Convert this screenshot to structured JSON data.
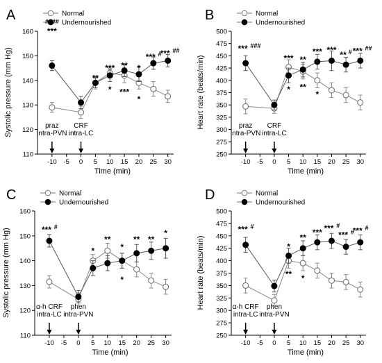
{
  "chart_data": [
    {
      "panel": "A",
      "type": "line",
      "ylabel": "Systolic pressure (mm Hg)",
      "xlabel": "Time (min)",
      "ylim": [
        110,
        160
      ],
      "yticks": [
        110,
        120,
        130,
        140,
        150,
        160
      ],
      "xticks": [
        -10,
        -5,
        0,
        5,
        10,
        15,
        20,
        25,
        30
      ],
      "legend": [
        "Normal",
        "Undernourished"
      ],
      "annotations": [
        {
          "x": -10,
          "lines": [
            "praz",
            "intra-PVN"
          ]
        },
        {
          "x": 0,
          "lines": [
            "CRF",
            "intra-LC"
          ]
        }
      ],
      "series": [
        {
          "name": "Normal",
          "x": [
            -10,
            0,
            5,
            10,
            15,
            20,
            25,
            30
          ],
          "y": [
            129,
            127,
            139,
            143,
            142,
            139,
            136.5,
            133.5
          ],
          "err": [
            2,
            2.5,
            2.5,
            2,
            3,
            2.5,
            3,
            2.5
          ]
        },
        {
          "name": "Undernourished",
          "x": [
            -10,
            0,
            5,
            10,
            15,
            20,
            25,
            30
          ],
          "y": [
            146,
            131,
            139,
            142,
            144,
            142.5,
            147,
            148
          ],
          "err": [
            2,
            2.5,
            2,
            2.5,
            2.5,
            3,
            2.5,
            2.5
          ]
        }
      ],
      "marks": [
        {
          "x": -10,
          "value": 160,
          "stars": "***",
          "hash": "####",
          "hashpos": "above"
        },
        {
          "x": 5,
          "value": 141,
          "stars": "**",
          "hash": ""
        },
        {
          "x": 10,
          "value": 145,
          "stars": "***",
          "hash": ""
        },
        {
          "x": 15,
          "value": 146,
          "stars": "**",
          "hash": ""
        },
        {
          "x": 20,
          "value": 145,
          "stars": "*",
          "hash": ""
        },
        {
          "x": 25,
          "value": 149.5,
          "stars": "***",
          "hash": "#"
        },
        {
          "x": 30,
          "value": 151,
          "stars": "***",
          "hash": "##"
        },
        {
          "x": 10,
          "value": 138,
          "stars": "*",
          "hash": "",
          "below": true
        },
        {
          "x": 15,
          "value": 137,
          "stars": "***",
          "hash": "",
          "below": true
        },
        {
          "x": 20,
          "value": 134,
          "stars": "*",
          "hash": "",
          "below": true
        }
      ]
    },
    {
      "panel": "B",
      "type": "line",
      "ylabel": "Heart rate (beats/min)",
      "xlabel": "Time (min)",
      "ylim": [
        250,
        500
      ],
      "yticks": [
        250,
        275,
        300,
        325,
        350,
        375,
        400,
        425,
        450,
        475,
        500
      ],
      "xticks": [
        -10,
        -5,
        0,
        5,
        10,
        15,
        20,
        25,
        30
      ],
      "legend": [
        "Normal",
        "Undernourished"
      ],
      "annotations": [
        {
          "x": -10,
          "lines": [
            "praz",
            "intra-PVN"
          ]
        },
        {
          "x": 0,
          "lines": [
            "CRF",
            "intra-LC"
          ]
        }
      ],
      "series": [
        {
          "name": "Normal",
          "x": [
            -10,
            0,
            5,
            10,
            15,
            20,
            25,
            30
          ],
          "y": [
            347,
            343,
            427,
            418,
            400,
            380,
            370,
            355
          ],
          "err": [
            15,
            10,
            15,
            15,
            15,
            15,
            15,
            15
          ]
        },
        {
          "name": "Undernourished",
          "x": [
            -10,
            0,
            5,
            10,
            15,
            20,
            25,
            30
          ],
          "y": [
            435,
            350,
            410,
            422,
            438,
            440,
            432,
            440
          ],
          "err": [
            15,
            10,
            15,
            15,
            15,
            20,
            15,
            15
          ]
        }
      ],
      "marks": [
        {
          "x": -10,
          "value": 465,
          "stars": "***",
          "hash": "###",
          "hashpos": "right"
        },
        {
          "x": 5,
          "value": 445,
          "stars": "***",
          "hash": ""
        },
        {
          "x": 10,
          "value": 442,
          "stars": "**",
          "hash": ""
        },
        {
          "x": 15,
          "value": 458,
          "stars": "***",
          "hash": ""
        },
        {
          "x": 20,
          "value": 462,
          "stars": "***",
          "hash": ""
        },
        {
          "x": 25,
          "value": 452,
          "stars": "**",
          "hash": "#"
        },
        {
          "x": 30,
          "value": 460,
          "stars": "***",
          "hash": "##"
        },
        {
          "x": 5,
          "value": 390,
          "stars": "*",
          "hash": "",
          "below": true
        },
        {
          "x": 10,
          "value": 395,
          "stars": "**",
          "hash": "",
          "below": true
        },
        {
          "x": 15,
          "value": 380,
          "stars": "*",
          "hash": "",
          "below": true
        }
      ]
    },
    {
      "panel": "C",
      "type": "line",
      "ylabel": "Systolic pressure (mm Hg)",
      "xlabel": "Time (min)",
      "ylim": [
        110,
        160
      ],
      "yticks": [
        110,
        120,
        130,
        140,
        150,
        160
      ],
      "xticks": [
        -10,
        -5,
        0,
        5,
        10,
        15,
        20,
        25,
        30
      ],
      "legend": [
        "Normal",
        "Undernourished"
      ],
      "annotations": [
        {
          "x": -10,
          "lines": [
            "α-h CRF",
            "intra-LC"
          ]
        },
        {
          "x": 0,
          "lines": [
            "phen",
            "intra-PVN"
          ]
        }
      ],
      "series": [
        {
          "name": "Normal",
          "x": [
            -10,
            0,
            5,
            10,
            15,
            20,
            25,
            30
          ],
          "y": [
            131.5,
            124.5,
            140,
            144,
            140,
            136.5,
            132,
            129.5
          ],
          "err": [
            2.5,
            2.5,
            2.5,
            3,
            3,
            3,
            3,
            3
          ]
        },
        {
          "name": "Undernourished",
          "x": [
            -10,
            0,
            5,
            10,
            15,
            20,
            25,
            30
          ],
          "y": [
            148,
            125.5,
            137,
            139,
            140,
            143,
            144,
            145
          ],
          "err": [
            2.5,
            2.5,
            3,
            3,
            3,
            3.5,
            3.5,
            4
          ]
        }
      ],
      "marks": [
        {
          "x": -10,
          "value": 152.5,
          "stars": "***",
          "hash": "#",
          "hashpos": "right"
        },
        {
          "x": 5,
          "value": 144,
          "stars": "*",
          "hash": ""
        },
        {
          "x": 10,
          "value": 148.5,
          "stars": "**",
          "hash": ""
        },
        {
          "x": 15,
          "value": 145.5,
          "stars": "*",
          "hash": ""
        },
        {
          "x": 20,
          "value": 148.5,
          "stars": "**",
          "hash": ""
        },
        {
          "x": 25,
          "value": 148.5,
          "stars": "**",
          "hash": ""
        },
        {
          "x": 30,
          "value": 151,
          "stars": "*",
          "hash": ""
        },
        {
          "x": 15,
          "value": 134,
          "stars": "*",
          "hash": "",
          "below": true
        }
      ]
    },
    {
      "panel": "D",
      "type": "line",
      "ylabel": "Heart rate (beats/min)",
      "xlabel": "Time (min)",
      "ylim": [
        250,
        500
      ],
      "yticks": [
        250,
        275,
        300,
        325,
        350,
        375,
        400,
        425,
        450,
        475,
        500
      ],
      "xticks": [
        -10,
        -5,
        0,
        5,
        10,
        15,
        20,
        25,
        30
      ],
      "legend": [
        "Normal",
        "Undernourished"
      ],
      "annotations": [
        {
          "x": -10,
          "lines": [
            "α-h CRF",
            "intra-LC"
          ]
        },
        {
          "x": 0,
          "lines": [
            "phen",
            "intra-PVN"
          ]
        }
      ],
      "series": [
        {
          "name": "Normal",
          "x": [
            -10,
            0,
            5,
            10,
            15,
            20,
            25,
            30
          ],
          "y": [
            350,
            320,
            400,
            395,
            380,
            360,
            357,
            342
          ],
          "err": [
            15,
            12,
            15,
            15,
            15,
            15,
            15,
            15
          ]
        },
        {
          "name": "Undernourished",
          "x": [
            -10,
            0,
            5,
            10,
            15,
            20,
            25,
            30
          ],
          "y": [
            432,
            349,
            410,
            425,
            437,
            440,
            428,
            437
          ],
          "err": [
            15,
            12,
            15,
            15,
            15,
            15,
            15,
            15
          ]
        }
      ],
      "marks": [
        {
          "x": -10,
          "value": 463,
          "stars": "***",
          "hash": "#",
          "hashpos": "right"
        },
        {
          "x": 5,
          "value": 428,
          "stars": "*",
          "hash": ""
        },
        {
          "x": 10,
          "value": 446,
          "stars": "**",
          "hash": ""
        },
        {
          "x": 15,
          "value": 457,
          "stars": "***",
          "hash": ""
        },
        {
          "x": 20,
          "value": 465,
          "stars": "***",
          "hash": "#"
        },
        {
          "x": 25,
          "value": 452,
          "stars": "***",
          "hash": "#"
        },
        {
          "x": 30,
          "value": 460,
          "stars": "***",
          "hash": "#"
        },
        {
          "x": 5,
          "value": 381,
          "stars": "**",
          "hash": "",
          "below": true
        },
        {
          "x": 10,
          "value": 373,
          "stars": "*",
          "hash": "",
          "below": true
        }
      ]
    }
  ]
}
